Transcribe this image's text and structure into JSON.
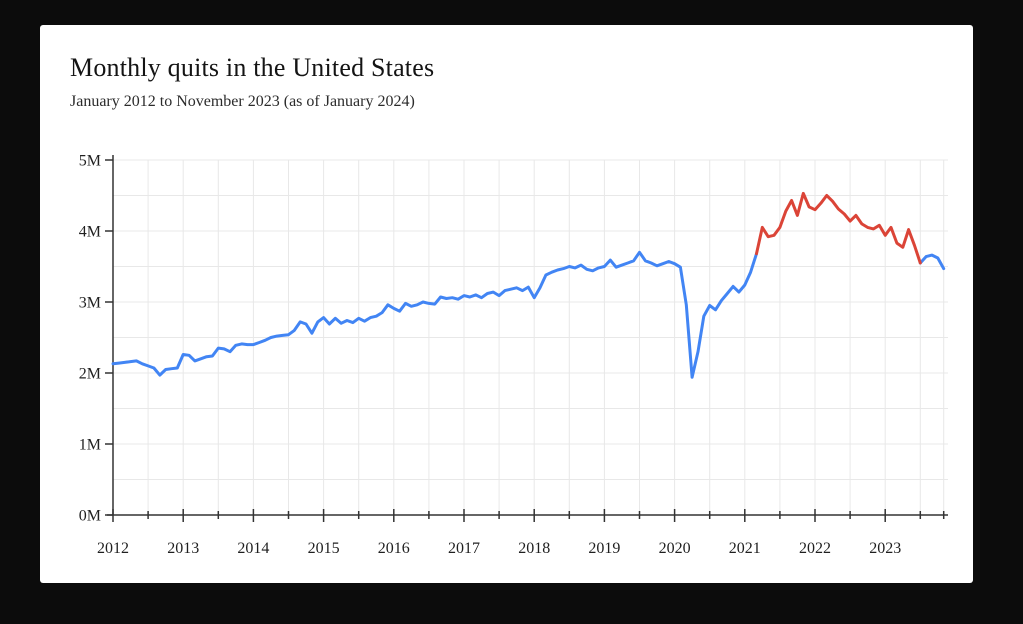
{
  "page": {
    "background_color": "#0c0c0c",
    "card_background_color": "#ffffff"
  },
  "header": {
    "title": "Monthly quits in the United States",
    "subtitle": "January 2012 to November 2023 (as of January 2024)"
  },
  "chart_data": {
    "type": "line",
    "title": "Monthly quits in the United States",
    "subtitle": "January 2012 to November 2023 (as of January 2024)",
    "x_unit": "month",
    "x_start": "2012-01",
    "x_end": "2023-11",
    "y_unit": "millions of quits",
    "ylim": [
      0,
      5
    ],
    "grid": true,
    "y_ticks": [
      "0M",
      "1M",
      "2M",
      "3M",
      "4M",
      "5M"
    ],
    "y_tick_values": [
      0,
      1,
      2,
      3,
      4,
      5
    ],
    "minor_y_grid_step": 0.5,
    "x_ticks": [
      "2012",
      "2013",
      "2014",
      "2015",
      "2016",
      "2017",
      "2018",
      "2019",
      "2020",
      "2021",
      "2022",
      "2023"
    ],
    "minor_x_grid_step_months": 6,
    "series": [
      {
        "name": "Monthly quits (millions)",
        "values_by_year": {
          "2012": [
            2.13,
            2.14,
            2.15,
            2.16,
            2.17,
            2.13,
            2.1,
            2.07,
            1.97,
            2.05,
            2.06,
            2.07
          ],
          "2013": [
            2.26,
            2.25,
            2.17,
            2.2,
            2.23,
            2.24,
            2.35,
            2.34,
            2.3,
            2.39,
            2.41,
            2.4
          ],
          "2014": [
            2.4,
            2.43,
            2.46,
            2.5,
            2.52,
            2.53,
            2.54,
            2.6,
            2.72,
            2.69,
            2.56,
            2.72
          ],
          "2015": [
            2.78,
            2.69,
            2.77,
            2.7,
            2.74,
            2.71,
            2.77,
            2.73,
            2.78,
            2.8,
            2.85,
            2.96
          ],
          "2016": [
            2.91,
            2.87,
            2.98,
            2.94,
            2.96,
            3.0,
            2.98,
            2.97,
            3.07,
            3.05,
            3.06,
            3.04
          ],
          "2017": [
            3.09,
            3.07,
            3.1,
            3.06,
            3.12,
            3.14,
            3.09,
            3.16,
            3.18,
            3.2,
            3.16,
            3.21
          ],
          "2018": [
            3.06,
            3.2,
            3.38,
            3.42,
            3.45,
            3.47,
            3.5,
            3.48,
            3.52,
            3.46,
            3.44,
            3.48
          ],
          "2019": [
            3.5,
            3.59,
            3.49,
            3.52,
            3.55,
            3.58,
            3.7,
            3.58,
            3.55,
            3.51,
            3.54,
            3.57
          ],
          "2020": [
            3.54,
            3.49,
            2.96,
            1.94,
            2.3,
            2.8,
            2.95,
            2.89,
            3.02,
            3.12,
            3.22,
            3.14
          ],
          "2021": [
            3.24,
            3.42,
            3.68,
            4.05,
            3.92,
            3.94,
            4.05,
            4.28,
            4.43,
            4.22,
            4.53,
            4.34
          ],
          "2022": [
            4.3,
            4.39,
            4.5,
            4.42,
            4.31,
            4.24,
            4.14,
            4.22,
            4.1,
            4.05,
            4.03,
            4.08
          ],
          "2023": [
            3.94,
            4.05,
            3.83,
            3.77,
            4.02,
            3.8,
            3.55,
            3.64,
            3.66,
            3.62,
            3.47
          ]
        }
      }
    ],
    "highlight": {
      "start": "2021-03",
      "end": "2023-07",
      "note": "red highlighted segment of the line"
    },
    "colors": {
      "line_default": "#4285f4",
      "line_highlight": "#db4437",
      "grid": "#e8e8e8",
      "axis": "#333333",
      "tick_label": "#1f1f1f"
    },
    "legend": "none"
  }
}
